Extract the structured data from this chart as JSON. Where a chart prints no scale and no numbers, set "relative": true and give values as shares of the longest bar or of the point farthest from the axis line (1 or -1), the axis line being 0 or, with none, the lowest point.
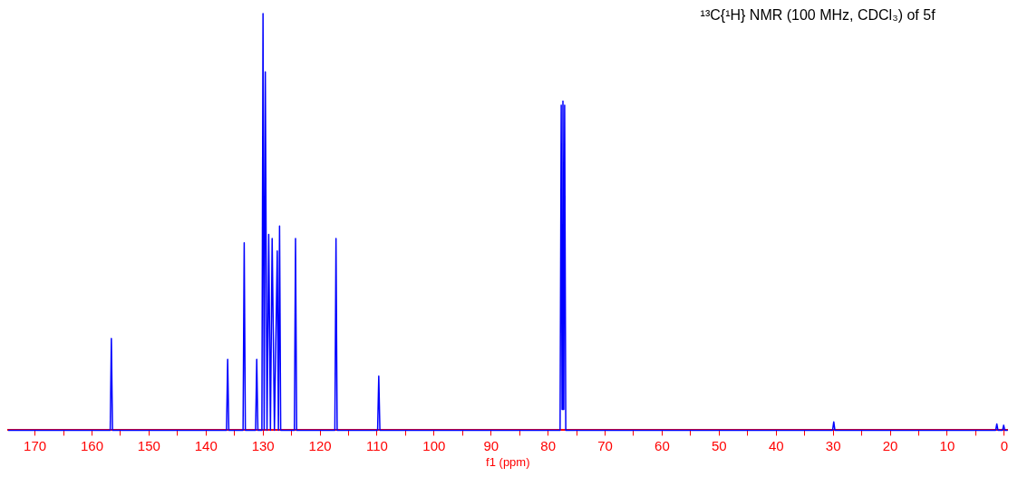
{
  "chart_data": {
    "type": "line",
    "title": "¹³C{¹H} NMR (100 MHz, CDCl₃) of 5f",
    "xlabel": "f1 (ppm)",
    "relative": true,
    "legend": false,
    "grid": false,
    "marker": "none",
    "tick_labels": "x",
    "xlim": [
      174.7,
      -0.6
    ],
    "xticks": [
      170,
      {
        "value": 165,
        "label": null
      },
      160,
      {
        "value": 155,
        "label": null
      },
      150,
      {
        "value": 145,
        "label": null
      },
      140,
      {
        "value": 135,
        "label": null
      },
      130,
      {
        "value": 125,
        "label": null
      },
      120,
      {
        "value": 115,
        "label": null
      },
      110,
      {
        "value": 105,
        "label": null
      },
      100,
      {
        "value": 95,
        "label": null
      },
      90,
      {
        "value": 85,
        "label": null
      },
      80,
      {
        "value": 75,
        "label": null
      },
      70,
      {
        "value": 65,
        "label": null
      },
      60,
      {
        "value": 55,
        "label": null
      },
      50,
      {
        "value": 45,
        "label": null
      },
      40,
      {
        "value": 35,
        "label": null
      },
      30,
      {
        "value": 25,
        "label": null
      },
      20,
      {
        "value": 15,
        "label": null
      },
      10,
      {
        "value": 5,
        "label": null
      },
      0
    ],
    "series": [
      {
        "color": "#0000ff",
        "x": [
          174.7,
          156.8,
          156.6,
          156.4,
          136.4,
          136.2,
          136.0,
          133.5,
          133.3,
          133.1,
          131.3,
          131.1,
          130.9,
          130.2,
          130.0,
          129.8,
          129.6,
          129.3,
          129.0,
          128.7,
          128.4,
          128.0,
          127.5,
          127.3,
          127.1,
          126.9,
          124.5,
          124.3,
          124.1,
          117.4,
          117.2,
          117.0,
          109.9,
          109.7,
          109.5,
          77.9,
          77.7,
          77.55,
          77.4,
          77.25,
          77.1,
          76.9,
          30.1,
          29.9,
          29.7,
          1.5,
          1.3,
          1.1,
          0.3,
          0.1,
          -0.1,
          -0.6
        ],
        "values": [
          0,
          0,
          0.22,
          0,
          0,
          0.17,
          0,
          0,
          0.45,
          0,
          0,
          0.17,
          0,
          0,
          1.0,
          0,
          0.86,
          0,
          0.47,
          0,
          0.46,
          0,
          0.43,
          0,
          0.49,
          0,
          0,
          0.46,
          0,
          0,
          0.46,
          0,
          0,
          0.13,
          0,
          0,
          0.78,
          0.05,
          0.79,
          0.05,
          0.78,
          0,
          0,
          0.02,
          0,
          0,
          0.015,
          0,
          0,
          0.012,
          0,
          0
        ]
      }
    ]
  }
}
